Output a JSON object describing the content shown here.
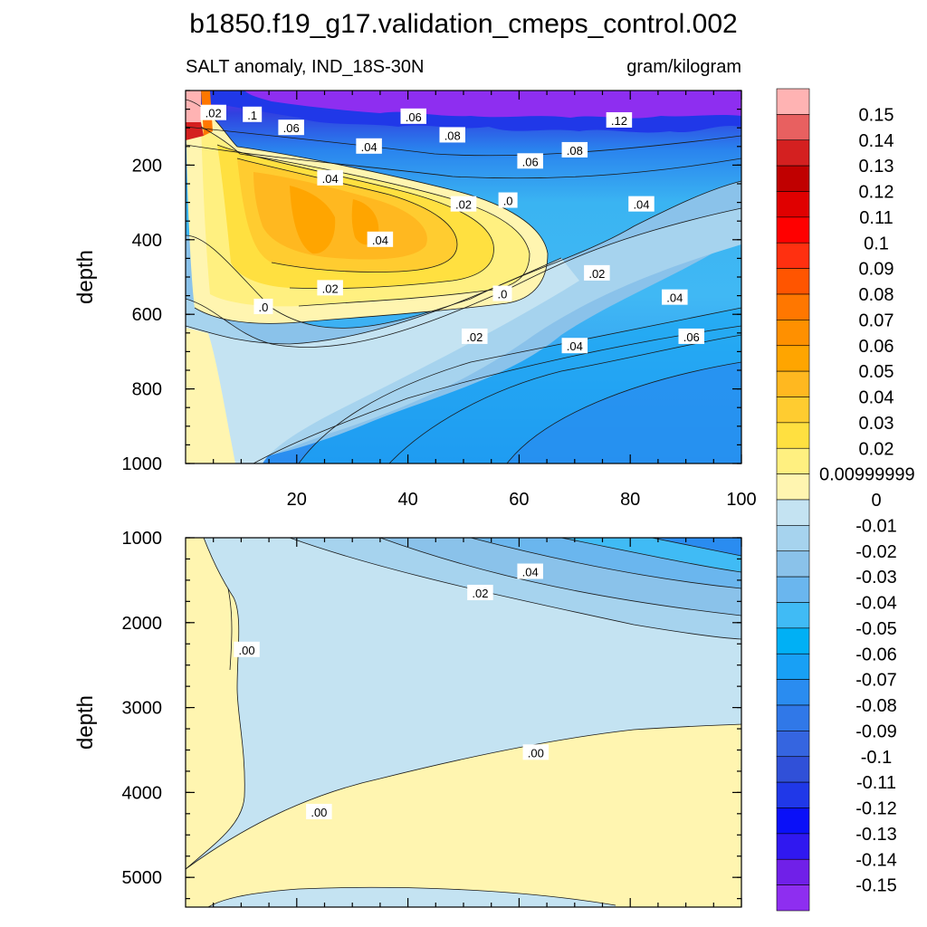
{
  "chart_data": {
    "type": "contour",
    "title": "b1850.f19_g17.validation_cmeps_control.002",
    "subtitle_left": "SALT anomaly, IND_18S-30N",
    "subtitle_right": "gram/kilogram",
    "panels": [
      {
        "ylabel": "depth",
        "ylim": [
          1000,
          0
        ],
        "xlim": [
          0,
          100
        ],
        "yticks": [
          200,
          400,
          600,
          800,
          1000
        ],
        "ytick_labels": [
          "200",
          "400",
          "600",
          "800",
          "1000"
        ],
        "xticks": [
          20,
          40,
          60,
          80,
          100
        ],
        "xtick_labels": [
          "20",
          "40",
          "60",
          "80",
          "100"
        ],
        "contour_labels": [
          {
            "text": ".02",
            "x": 5,
            "y": 60
          },
          {
            "text": ".1",
            "x": 12,
            "y": 65
          },
          {
            "text": ".06",
            "x": 19,
            "y": 100
          },
          {
            "text": ".06",
            "x": 41,
            "y": 70
          },
          {
            "text": ".08",
            "x": 48,
            "y": 120
          },
          {
            "text": ".04",
            "x": 33,
            "y": 150
          },
          {
            "text": ".12",
            "x": 78,
            "y": 80
          },
          {
            "text": ".08",
            "x": 70,
            "y": 160
          },
          {
            "text": ".06",
            "x": 62,
            "y": 190
          },
          {
            "text": ".04",
            "x": 26,
            "y": 235
          },
          {
            "text": ".02",
            "x": 50,
            "y": 305
          },
          {
            "text": ".0",
            "x": 58,
            "y": 295
          },
          {
            "text": ".04",
            "x": 82,
            "y": 305
          },
          {
            "text": ".04",
            "x": 35,
            "y": 400
          },
          {
            "text": ".02",
            "x": 74,
            "y": 490
          },
          {
            "text": ".0",
            "x": 57,
            "y": 545
          },
          {
            "text": ".04",
            "x": 88,
            "y": 555
          },
          {
            "text": ".02",
            "x": 26,
            "y": 530
          },
          {
            "text": ".0",
            "x": 14,
            "y": 580
          },
          {
            "text": ".02",
            "x": 52,
            "y": 660
          },
          {
            "text": ".04",
            "x": 70,
            "y": 685
          },
          {
            "text": ".06",
            "x": 91,
            "y": 660
          }
        ]
      },
      {
        "ylabel": "depth",
        "ylim": [
          5350,
          1000
        ],
        "xlim": [
          0,
          100
        ],
        "yticks": [
          1000,
          2000,
          3000,
          4000,
          5000
        ],
        "ytick_labels": [
          "1000",
          "2000",
          "3000",
          "4000",
          "5000"
        ],
        "contour_labels": [
          {
            "text": ".04",
            "x": 62,
            "y": 1400
          },
          {
            "text": ".02",
            "x": 53,
            "y": 1650
          },
          {
            "text": ".00",
            "x": 11,
            "y": 2320
          },
          {
            "text": ".00",
            "x": 63,
            "y": 3530
          },
          {
            "text": ".00",
            "x": 24,
            "y": 4230
          }
        ]
      }
    ],
    "colorbar": {
      "labels": [
        "0.15",
        "0.14",
        "0.13",
        "0.12",
        "0.11",
        "0.1",
        "0.09",
        "0.08",
        "0.07",
        "0.06",
        "0.05",
        "0.04",
        "0.03",
        "0.02",
        "0.00999999",
        "0",
        "-0.01",
        "-0.02",
        "-0.03",
        "-0.04",
        "-0.05",
        "-0.06",
        "-0.07",
        "-0.08",
        "-0.09",
        "-0.1",
        "-0.11",
        "-0.12",
        "-0.13",
        "-0.14",
        "-0.15"
      ],
      "colors": [
        "#ffb3b3",
        "#e86060",
        "#d42020",
        "#c00000",
        "#e00000",
        "#ff0000",
        "#ff3010",
        "#ff5500",
        "#ff7700",
        "#ff9000",
        "#ffa500",
        "#ffb820",
        "#ffcc30",
        "#ffe040",
        "#fff080",
        "#fff5b0",
        "#c4e3f2",
        "#a6d3ee",
        "#8ac2ea",
        "#6ab6ee",
        "#40bbf5",
        "#00b0f5",
        "#18a0f5",
        "#2a8cf0",
        "#3078e8",
        "#3565e0",
        "#3050d8",
        "#2038e8",
        "#0a10f8",
        "#3018f0",
        "#7020e8",
        "#8e2ef0"
      ]
    }
  }
}
